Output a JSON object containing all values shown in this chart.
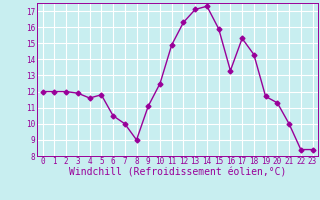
{
  "x": [
    0,
    1,
    2,
    3,
    4,
    5,
    6,
    7,
    8,
    9,
    10,
    11,
    12,
    13,
    14,
    15,
    16,
    17,
    18,
    19,
    20,
    21,
    22,
    23
  ],
  "y": [
    12,
    12,
    12,
    11.9,
    11.6,
    11.8,
    10.5,
    10.0,
    9.0,
    11.1,
    12.5,
    14.9,
    16.3,
    17.1,
    17.3,
    15.9,
    13.3,
    15.3,
    14.3,
    11.7,
    11.3,
    10.0,
    8.4,
    8.4
  ],
  "line_color": "#990099",
  "marker": "D",
  "marker_size": 2.5,
  "bg_color": "#c8eef0",
  "grid_color": "#ffffff",
  "xlabel": "Windchill (Refroidissement éolien,°C)",
  "ylim": [
    8,
    17.5
  ],
  "xlim": [
    -0.5,
    23.5
  ],
  "yticks": [
    8,
    9,
    10,
    11,
    12,
    13,
    14,
    15,
    16,
    17
  ],
  "xticks": [
    0,
    1,
    2,
    3,
    4,
    5,
    6,
    7,
    8,
    9,
    10,
    11,
    12,
    13,
    14,
    15,
    16,
    17,
    18,
    19,
    20,
    21,
    22,
    23
  ],
  "tick_label_fontsize": 5.5,
  "xlabel_fontsize": 7.0,
  "line_width": 1.0
}
